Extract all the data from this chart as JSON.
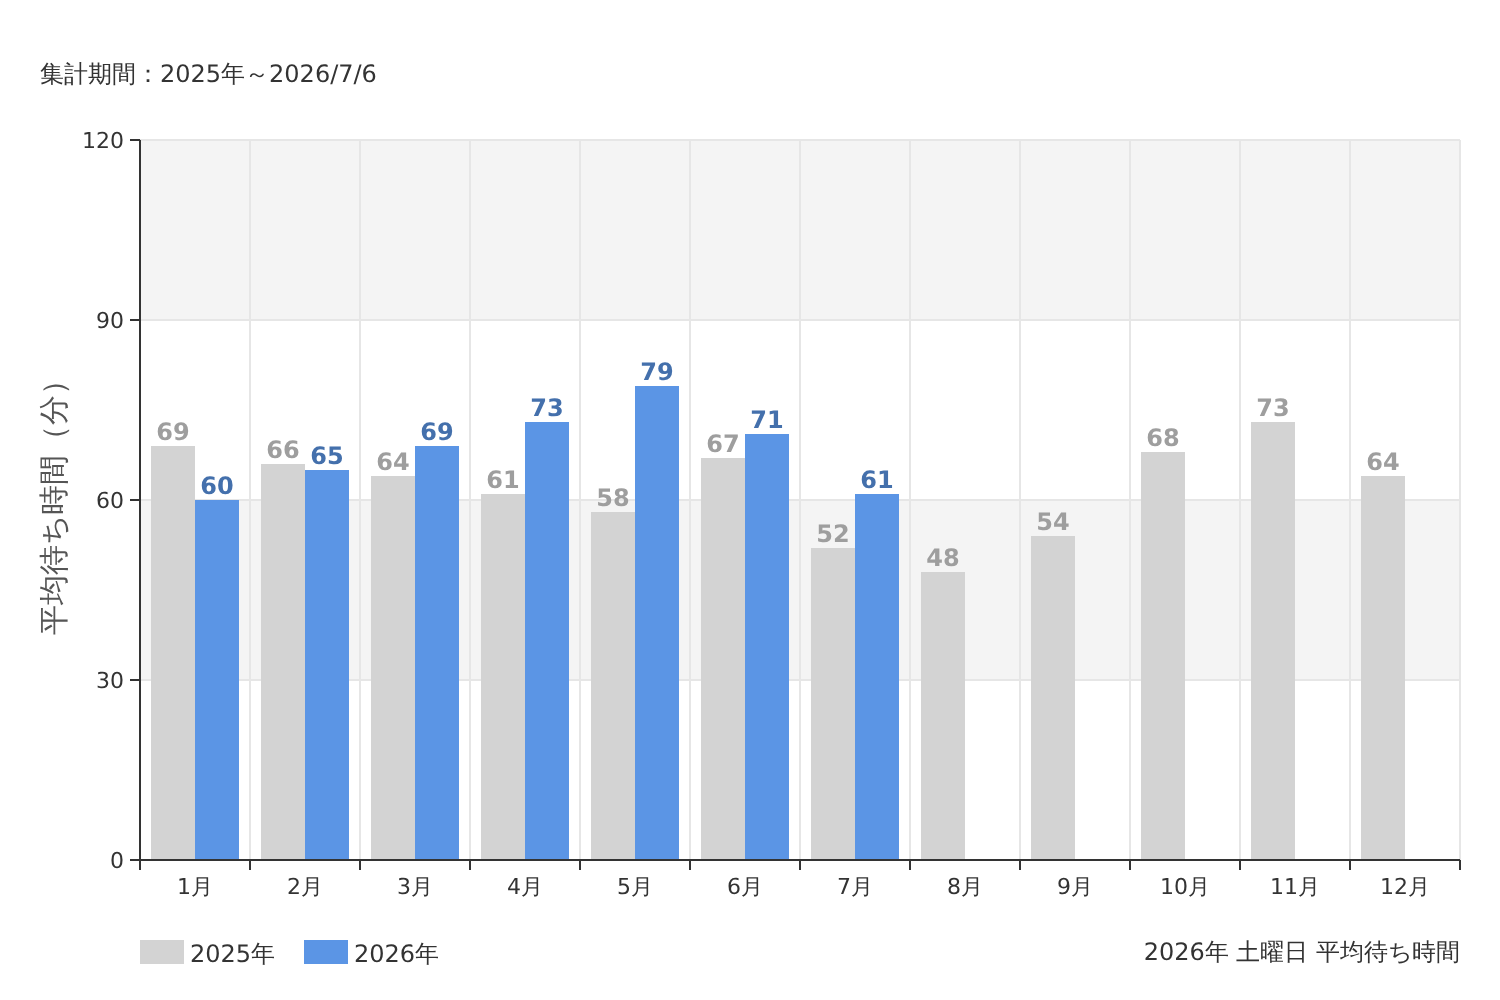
{
  "chart_data": {
    "type": "bar",
    "subtitle": "集計期間：2025年～2026/7/6",
    "ylabel": "平均待ち時間（分）",
    "categories": [
      "1月",
      "2月",
      "3月",
      "4月",
      "5月",
      "6月",
      "7月",
      "8月",
      "9月",
      "10月",
      "11月",
      "12月"
    ],
    "series": [
      {
        "name": "2025年",
        "color": "#d3d3d3",
        "values": [
          69,
          66,
          64,
          61,
          58,
          67,
          52,
          48,
          54,
          68,
          73,
          64
        ]
      },
      {
        "name": "2026年",
        "color": "#5b95e5",
        "values": [
          60,
          65,
          69,
          73,
          79,
          71,
          61,
          null,
          null,
          null,
          null,
          null
        ]
      }
    ],
    "ylim": [
      0,
      120
    ],
    "yticks": [
      0,
      30,
      60,
      90,
      120
    ],
    "bands": [
      {
        "axis": "y",
        "from": 30,
        "to": 60,
        "color": "#f4f4f4"
      },
      {
        "axis": "y",
        "from": 90,
        "to": 120,
        "color": "#f4f4f4"
      }
    ],
    "grid": true,
    "data_labels": true,
    "legend": "bottom left",
    "annotations": [
      "2026年 土曜日 平均待ち時間"
    ]
  }
}
